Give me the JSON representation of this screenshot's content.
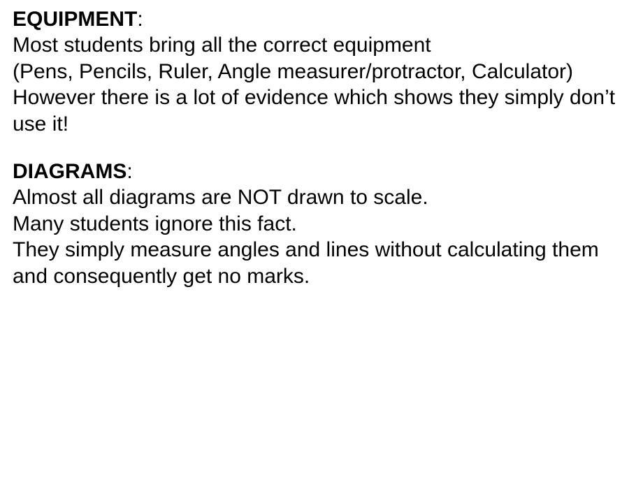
{
  "document": {
    "background_color": "#ffffff",
    "text_color": "#000000",
    "font_family": "Arial",
    "heading_fontsize": 30,
    "body_fontsize": 30,
    "sections": [
      {
        "heading": "EQUIPMENT",
        "colon": ":",
        "lines": [
          "Most students bring all the correct equipment",
          "(Pens, Pencils, Ruler, Angle measurer/protractor, Calculator)",
          "However there is a lot of evidence which shows they simply don’t use it!"
        ]
      },
      {
        "heading": "DIAGRAMS",
        "colon": ":",
        "lines": [
          "Almost all diagrams are NOT drawn to scale.",
          "Many students ignore this fact.",
          "They simply measure angles and lines without calculating them and consequently get no marks."
        ]
      }
    ]
  }
}
